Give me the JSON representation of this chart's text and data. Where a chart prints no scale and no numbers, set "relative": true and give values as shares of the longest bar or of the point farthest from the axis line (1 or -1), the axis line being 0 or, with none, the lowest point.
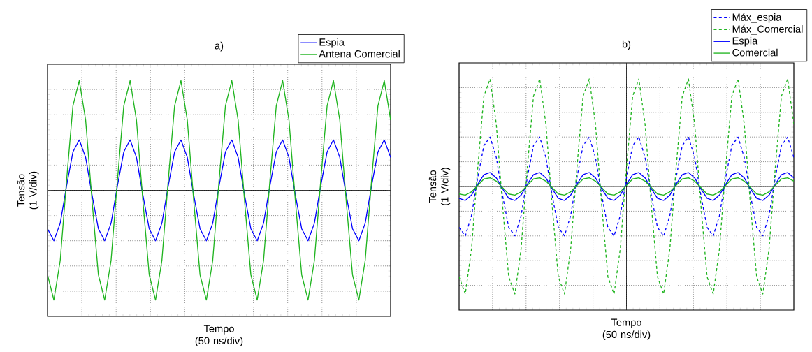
{
  "chart_data": [
    {
      "type": "line",
      "title": "a)",
      "xlabel": "Tempo (50 ns/div)",
      "ylabel": "Tensão (1 V/div)",
      "relative": true,
      "grid": true,
      "legend": "top right",
      "tick_labels": false,
      "categories": [
        null,
        null,
        null,
        null,
        null,
        null,
        null,
        null,
        null,
        null,
        null,
        null,
        null,
        null,
        null,
        null,
        null,
        null,
        null,
        null,
        null,
        null,
        null,
        null,
        null,
        null,
        null,
        null,
        null,
        null,
        null,
        null,
        null,
        null,
        null,
        null,
        null,
        null,
        null,
        null,
        null,
        null,
        null,
        null,
        null,
        null,
        null,
        null,
        null,
        null,
        null,
        null,
        null,
        null,
        null
      ],
      "series": [
        {
          "name": "Espia",
          "color": "#0000ff",
          "values": [
            -0.35,
            -0.46,
            -0.3,
            0.04,
            0.35,
            0.46,
            0.3,
            -0.04,
            -0.35,
            -0.46,
            -0.3,
            0.04,
            0.35,
            0.46,
            0.3,
            -0.04,
            -0.35,
            -0.46,
            -0.3,
            0.04,
            0.35,
            0.46,
            0.3,
            -0.04,
            -0.35,
            -0.46,
            -0.3,
            0.04,
            0.35,
            0.46,
            0.3,
            -0.04,
            -0.35,
            -0.46,
            -0.3,
            0.04,
            0.35,
            0.46,
            0.3,
            -0.04,
            -0.35,
            -0.46,
            -0.3,
            0.04,
            0.35,
            0.46,
            0.3,
            -0.04,
            -0.35,
            -0.46,
            -0.3,
            0.04,
            0.35,
            0.46,
            0.3
          ]
        },
        {
          "name": "Antena Comercial",
          "color": "#1fb41f",
          "values": [
            -0.77,
            -1,
            -0.64,
            0.09,
            0.77,
            1,
            0.64,
            -0.09,
            -0.77,
            -1,
            -0.64,
            0.09,
            0.77,
            1,
            0.64,
            -0.09,
            -0.77,
            -1,
            -0.64,
            0.09,
            0.77,
            1,
            0.64,
            -0.09,
            -0.77,
            -1,
            -0.64,
            0.09,
            0.77,
            1,
            0.64,
            -0.09,
            -0.77,
            -1,
            -0.64,
            0.09,
            0.77,
            1,
            0.64,
            -0.09,
            -0.77,
            -1,
            -0.64,
            0.09,
            0.77,
            1,
            0.64,
            -0.09,
            -0.77,
            -1,
            -0.64,
            0.09,
            0.77,
            1,
            0.64
          ]
        }
      ]
    },
    {
      "type": "line",
      "title": "b)",
      "xlabel": "Tempo (50 ns/div)",
      "ylabel": "Tensão (1 V/div)",
      "relative": true,
      "grid": true,
      "legend": "top right",
      "tick_labels": false,
      "categories": [
        null,
        null,
        null,
        null,
        null,
        null,
        null,
        null,
        null,
        null,
        null,
        null,
        null,
        null,
        null,
        null,
        null,
        null,
        null,
        null,
        null,
        null,
        null,
        null,
        null,
        null,
        null,
        null,
        null,
        null,
        null,
        null,
        null,
        null,
        null,
        null,
        null,
        null,
        null,
        null,
        null,
        null,
        null,
        null,
        null,
        null,
        null,
        null,
        null,
        null,
        null,
        null,
        null,
        null,
        null
      ],
      "series": [
        {
          "name": "Máx_espia",
          "color": "#0000ff",
          "line_style": "dashed",
          "values": [
            -0.38,
            -0.46,
            -0.27,
            0.08,
            0.38,
            0.46,
            0.27,
            -0.08,
            -0.38,
            -0.46,
            -0.27,
            0.08,
            0.38,
            0.46,
            0.27,
            -0.08,
            -0.38,
            -0.46,
            -0.27,
            0.08,
            0.38,
            0.46,
            0.27,
            -0.08,
            -0.38,
            -0.46,
            -0.27,
            0.08,
            0.38,
            0.46,
            0.27,
            -0.08,
            -0.38,
            -0.46,
            -0.27,
            0.08,
            0.38,
            0.46,
            0.27,
            -0.08,
            -0.38,
            -0.46,
            -0.27,
            0.08,
            0.38,
            0.46,
            0.27,
            -0.08,
            -0.38,
            -0.46,
            -0.27,
            0.08,
            0.38,
            0.46,
            0.27
          ]
        },
        {
          "name": "Máx_Comercial",
          "color": "#1fb41f",
          "line_style": "dashed",
          "values": [
            -0.84,
            -1,
            -0.58,
            0.17,
            0.84,
            1,
            0.58,
            -0.17,
            -0.84,
            -1,
            -0.58,
            0.17,
            0.84,
            1,
            0.58,
            -0.17,
            -0.84,
            -1,
            -0.58,
            0.17,
            0.84,
            1,
            0.58,
            -0.17,
            -0.84,
            -1,
            -0.58,
            0.17,
            0.84,
            1,
            0.58,
            -0.17,
            -0.84,
            -1,
            -0.58,
            0.17,
            0.84,
            1,
            0.58,
            -0.17,
            -0.84,
            -1,
            -0.58,
            0.17,
            0.84,
            1,
            0.58,
            -0.17,
            -0.84,
            -1,
            -0.58,
            0.17,
            0.84,
            1,
            0.58
          ]
        },
        {
          "name": "Espia",
          "color": "#0000ff",
          "line_style": "solid",
          "values": [
            -0.11,
            -0.13,
            -0.08,
            0.02,
            0.11,
            0.13,
            0.08,
            -0.02,
            -0.11,
            -0.13,
            -0.08,
            0.02,
            0.11,
            0.13,
            0.08,
            -0.02,
            -0.11,
            -0.13,
            -0.08,
            0.02,
            0.11,
            0.13,
            0.08,
            -0.02,
            -0.11,
            -0.13,
            -0.08,
            0.02,
            0.11,
            0.13,
            0.08,
            -0.02,
            -0.11,
            -0.13,
            -0.08,
            0.02,
            0.11,
            0.13,
            0.08,
            -0.02,
            -0.11,
            -0.13,
            -0.08,
            0.02,
            0.11,
            0.13,
            0.08,
            -0.02,
            -0.11,
            -0.13,
            -0.08,
            0.02,
            0.11,
            0.13,
            0.08
          ]
        },
        {
          "name": "Comercial",
          "color": "#1fb41f",
          "line_style": "solid",
          "values": [
            -0.07,
            -0.08,
            -0.05,
            0.01,
            0.07,
            0.08,
            0.05,
            -0.01,
            -0.07,
            -0.08,
            -0.05,
            0.01,
            0.07,
            0.08,
            0.05,
            -0.01,
            -0.07,
            -0.08,
            -0.05,
            0.01,
            0.07,
            0.08,
            0.05,
            -0.01,
            -0.07,
            -0.08,
            -0.05,
            0.01,
            0.07,
            0.08,
            0.05,
            -0.01,
            -0.07,
            -0.08,
            -0.05,
            0.01,
            0.07,
            0.08,
            0.05,
            -0.01,
            -0.07,
            -0.08,
            -0.05,
            0.01,
            0.07,
            0.08,
            0.05,
            -0.01,
            -0.07,
            -0.08,
            -0.05,
            0.01,
            0.07,
            0.08,
            0.05
          ]
        }
      ]
    }
  ]
}
